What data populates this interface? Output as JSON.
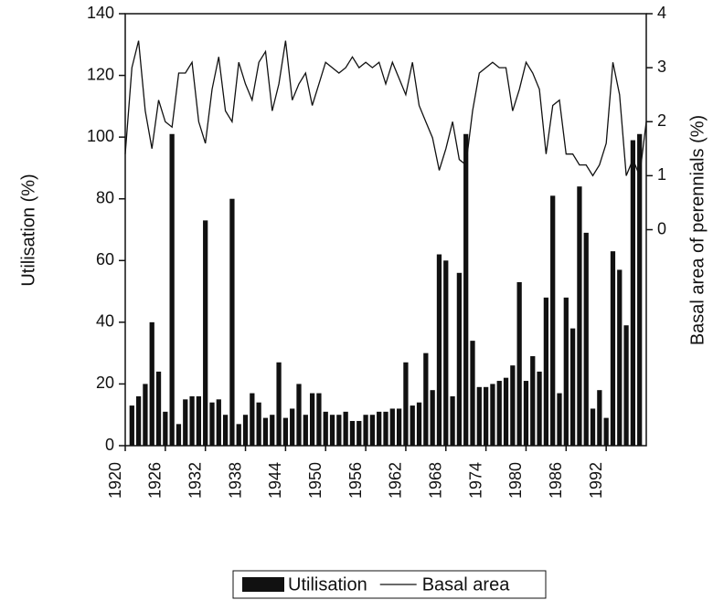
{
  "chart_data": {
    "type": "bar-line",
    "ylabel": "Utilisation (%)",
    "y2label": "Basal area of perennials (%)",
    "xlim": [
      1920,
      1998
    ],
    "xticks": [
      1920,
      1926,
      1932,
      1938,
      1944,
      1950,
      1956,
      1962,
      1968,
      1974,
      1980,
      1986,
      1992
    ],
    "ylim": [
      0,
      140
    ],
    "yticks": [
      0,
      20,
      40,
      60,
      80,
      100,
      120,
      140
    ],
    "y2lim": [
      -4,
      4
    ],
    "y2ticks": [
      0,
      1,
      2,
      3,
      4
    ],
    "series": [
      {
        "name": "Utilisation",
        "type": "bar",
        "color": "#111111",
        "x": [
          1921,
          1922,
          1923,
          1924,
          1925,
          1926,
          1927,
          1928,
          1929,
          1930,
          1931,
          1932,
          1933,
          1934,
          1935,
          1936,
          1937,
          1938,
          1939,
          1940,
          1941,
          1942,
          1943,
          1944,
          1945,
          1946,
          1947,
          1948,
          1949,
          1950,
          1951,
          1952,
          1953,
          1954,
          1955,
          1956,
          1957,
          1958,
          1959,
          1960,
          1961,
          1962,
          1963,
          1964,
          1965,
          1966,
          1967,
          1968,
          1969,
          1970,
          1971,
          1972,
          1973,
          1974,
          1975,
          1976,
          1977,
          1978,
          1979,
          1980,
          1981,
          1982,
          1983,
          1984,
          1985,
          1986,
          1987,
          1988,
          1989,
          1990,
          1991,
          1992,
          1993,
          1994,
          1995,
          1996,
          1997
        ],
        "values": [
          13,
          16,
          20,
          40,
          24,
          11,
          101,
          7,
          15,
          16,
          16,
          73,
          14,
          15,
          10,
          80,
          7,
          10,
          17,
          14,
          9,
          10,
          27,
          9,
          12,
          20,
          10,
          17,
          17,
          11,
          10,
          10,
          11,
          8,
          8,
          10,
          10,
          11,
          11,
          12,
          12,
          27,
          13,
          14,
          30,
          18,
          62,
          60,
          16,
          56,
          101,
          34,
          19,
          19,
          20,
          21,
          22,
          26,
          53,
          21,
          29,
          24,
          48,
          81,
          17,
          48,
          38,
          84,
          69,
          12,
          18,
          9,
          63,
          57,
          39,
          99,
          101
        ]
      },
      {
        "name": "Basal area",
        "type": "line",
        "color": "#111111",
        "axis": "y2",
        "x": [
          1920,
          1921,
          1922,
          1923,
          1924,
          1925,
          1926,
          1927,
          1928,
          1929,
          1930,
          1931,
          1932,
          1933,
          1934,
          1935,
          1936,
          1937,
          1938,
          1939,
          1940,
          1941,
          1942,
          1943,
          1944,
          1945,
          1946,
          1947,
          1948,
          1949,
          1950,
          1951,
          1952,
          1953,
          1954,
          1955,
          1956,
          1957,
          1958,
          1959,
          1960,
          1961,
          1962,
          1963,
          1964,
          1965,
          1966,
          1967,
          1968,
          1969,
          1970,
          1971,
          1972,
          1973,
          1974,
          1975,
          1976,
          1977,
          1978,
          1979,
          1980,
          1981,
          1982,
          1983,
          1984,
          1985,
          1986,
          1987,
          1988,
          1989,
          1990,
          1991,
          1992,
          1993,
          1994,
          1995,
          1996,
          1997,
          1998
        ],
        "values": [
          1.4,
          3.0,
          3.5,
          2.2,
          1.5,
          2.4,
          2.0,
          1.9,
          2.9,
          2.9,
          3.1,
          2.0,
          1.6,
          2.6,
          3.2,
          2.2,
          2.0,
          3.1,
          2.7,
          2.4,
          3.1,
          3.3,
          2.2,
          2.7,
          3.5,
          2.4,
          2.7,
          2.9,
          2.3,
          2.7,
          3.1,
          3.0,
          2.9,
          3.0,
          3.2,
          3.0,
          3.1,
          3.0,
          3.1,
          2.7,
          3.1,
          2.8,
          2.5,
          3.1,
          2.3,
          2.0,
          1.7,
          1.1,
          1.5,
          2.0,
          1.3,
          1.2,
          2.2,
          2.9,
          3.0,
          3.1,
          3.0,
          3.0,
          2.2,
          2.6,
          3.1,
          2.9,
          2.6,
          1.4,
          2.3,
          2.4,
          1.4,
          1.4,
          1.2,
          1.2,
          1.0,
          1.2,
          1.6,
          3.1,
          2.5,
          1.0,
          1.3,
          1.0,
          2.0
        ]
      }
    ]
  }
}
